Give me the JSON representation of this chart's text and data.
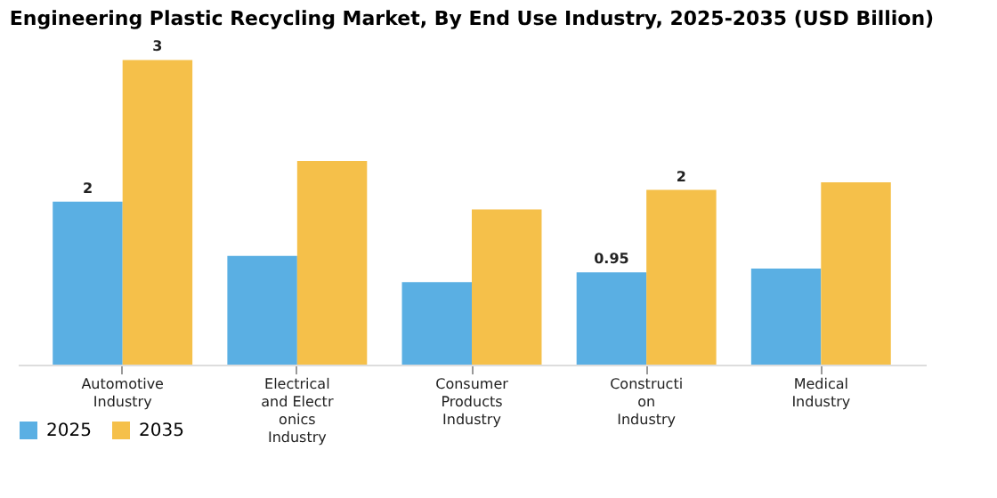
{
  "chart_data": {
    "type": "bar",
    "title": "Engineering Plastic Recycling Market, By End Use Industry, 2025-2035 (USD Billion)",
    "categories": [
      "Automotive\nIndustry",
      "Electrical\nand Electr\nonics\nIndustry",
      "Consumer\nProducts\nIndustry",
      "Constructi\non\nIndustry",
      "Medical\nIndustry"
    ],
    "series": [
      {
        "name": "2025",
        "color": "#5aafe3",
        "values": [
          1.68,
          1.12,
          0.85,
          0.95,
          0.99
        ],
        "value_labels": [
          "2",
          null,
          null,
          "0.95",
          null
        ]
      },
      {
        "name": "2035",
        "color": "#f5c04a",
        "values": [
          3.14,
          2.1,
          1.6,
          1.8,
          1.88
        ],
        "value_labels": [
          "3",
          null,
          null,
          "2",
          null
        ]
      }
    ],
    "legend": "bottom"
  }
}
